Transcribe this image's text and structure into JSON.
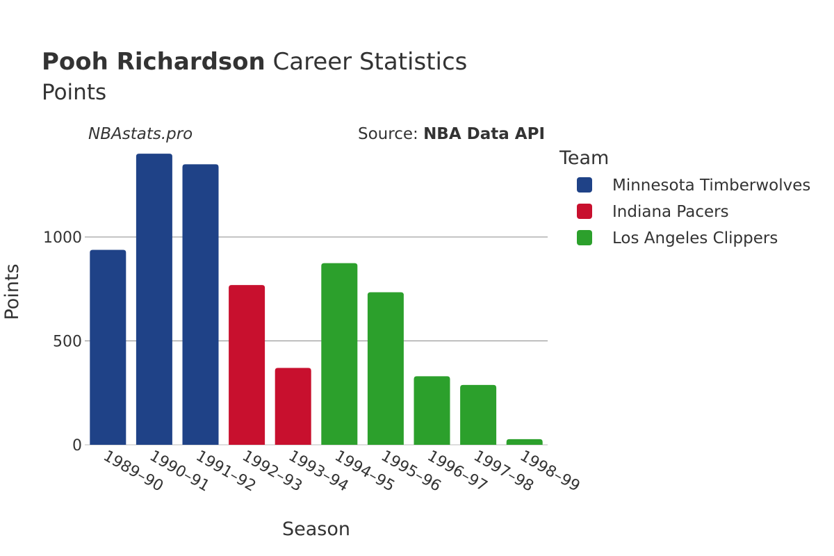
{
  "header": {
    "title_bold": "Pooh Richardson",
    "title_rest": " Career Statistics",
    "subtitle": "Points",
    "watermark": "NBAstats.pro",
    "source_prefix": "Source: ",
    "source_name": "NBA Data API"
  },
  "legend": {
    "title": "Team"
  },
  "chart_data": {
    "type": "bar",
    "xlabel": "Season",
    "ylabel": "Points",
    "ylim": [
      0,
      1400
    ],
    "yticks": [
      0,
      500,
      1000
    ],
    "grid": true,
    "legend_position": "right",
    "categories": [
      "1989–90",
      "1990–91",
      "1991–92",
      "1992–93",
      "1993–94",
      "1994–95",
      "1995–96",
      "1996–97",
      "1997–98",
      "1998–99"
    ],
    "series": [
      {
        "name": "Minnesota Timberwolves",
        "color": "#1f4287",
        "values": [
          938,
          1401,
          1350,
          null,
          null,
          null,
          null,
          null,
          null,
          null
        ]
      },
      {
        "name": "Indiana Pacers",
        "color": "#c8102e",
        "values": [
          null,
          null,
          null,
          769,
          370,
          null,
          null,
          null,
          null,
          null
        ]
      },
      {
        "name": "Los Angeles Clippers",
        "color": "#2ca02c",
        "values": [
          null,
          null,
          null,
          null,
          null,
          874,
          734,
          330,
          288,
          27
        ]
      }
    ]
  }
}
